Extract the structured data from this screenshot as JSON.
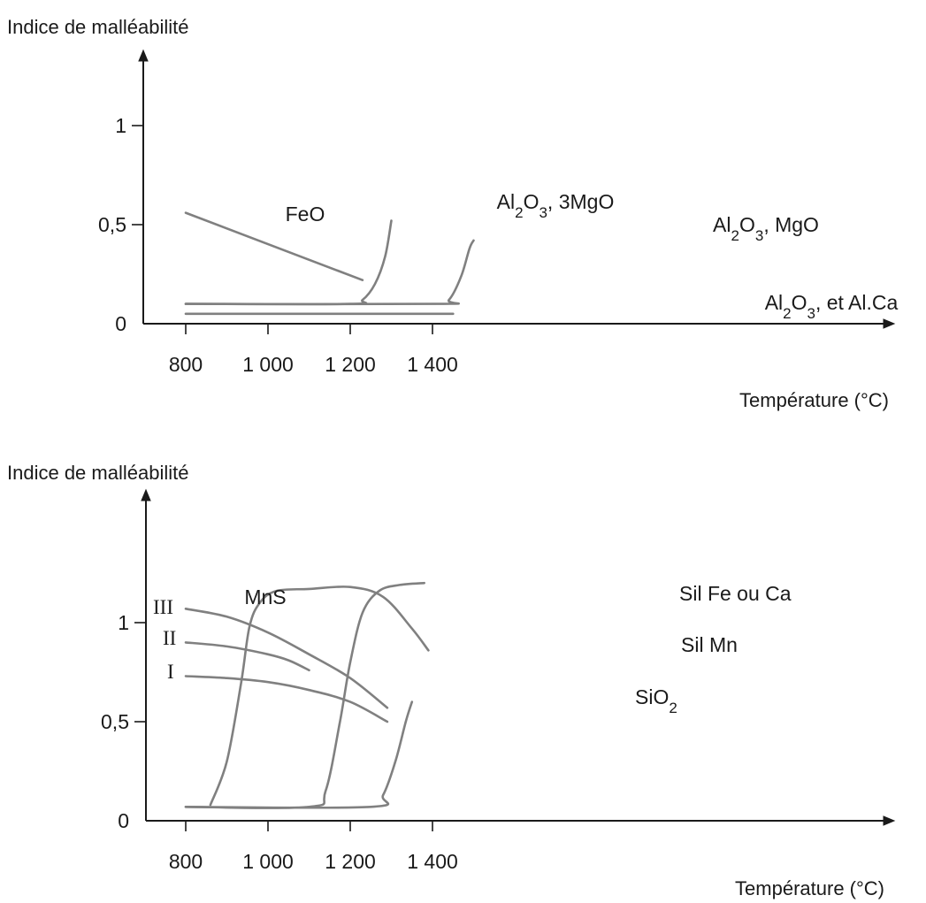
{
  "chart_data": [
    {
      "type": "line",
      "ylabel": "Indice de malléabilité",
      "xlabel": "Température (°C)",
      "xlim": [
        800,
        1600
      ],
      "ylim": [
        0,
        1.5
      ],
      "x_ticks": [
        800,
        1000,
        1200,
        1400
      ],
      "x_tick_labels": [
        "800",
        "1 000",
        "1 200",
        "1 400"
      ],
      "y_ticks": [
        0,
        0.5,
        1
      ],
      "y_tick_labels": [
        "0",
        "0,5",
        "1"
      ],
      "grid": false,
      "series": [
        {
          "name": "FeO",
          "label_parts": [
            {
              "t": "FeO"
            }
          ],
          "x": [
            800,
            1230
          ],
          "y": [
            0.56,
            0.22
          ]
        },
        {
          "name": "Al2O3, 3MgO",
          "label_parts": [
            {
              "t": "Al"
            },
            {
              "t": "2",
              "sub": true
            },
            {
              "t": "O"
            },
            {
              "t": "3",
              "sub": true
            },
            {
              "t": ", 3MgO"
            }
          ],
          "x": [
            800,
            1200,
            1230,
            1260,
            1285,
            1300
          ],
          "y": [
            0.1,
            0.1,
            0.12,
            0.2,
            0.34,
            0.52
          ]
        },
        {
          "name": "Al2O3, MgO",
          "label_parts": [
            {
              "t": "Al"
            },
            {
              "t": "2",
              "sub": true
            },
            {
              "t": "O"
            },
            {
              "t": "3",
              "sub": true
            },
            {
              "t": ", MgO"
            }
          ],
          "x": [
            800,
            1410,
            1440,
            1470,
            1490,
            1500
          ],
          "y": [
            0.1,
            0.1,
            0.12,
            0.24,
            0.38,
            0.42
          ]
        },
        {
          "name": "Al2O3, et Al.Ca",
          "label_parts": [
            {
              "t": "Al"
            },
            {
              "t": "2",
              "sub": true
            },
            {
              "t": "O"
            },
            {
              "t": "3",
              "sub": true
            },
            {
              "t": ", et Al.Ca"
            }
          ],
          "x": [
            800,
            1450
          ],
          "y": [
            0.05,
            0.05
          ]
        }
      ]
    },
    {
      "type": "line",
      "ylabel": "Indice de malléabilité",
      "xlabel": "Température (°C)",
      "xlim": [
        800,
        1600
      ],
      "ylim": [
        0,
        1.5
      ],
      "x_ticks": [
        800,
        1000,
        1200,
        1400
      ],
      "x_tick_labels": [
        "800",
        "1 000",
        "1 200",
        "1 400"
      ],
      "y_ticks": [
        0,
        0.5,
        1
      ],
      "y_tick_labels": [
        "0",
        "0,5",
        "1"
      ],
      "grid": false,
      "annotations": [
        {
          "text": "MnS"
        }
      ],
      "series": [
        {
          "name": "III",
          "roman": true,
          "x": [
            800,
            900,
            1000,
            1100,
            1200,
            1290
          ],
          "y": [
            1.07,
            1.03,
            0.95,
            0.84,
            0.72,
            0.57
          ]
        },
        {
          "name": "II",
          "roman": true,
          "x": [
            800,
            900,
            1000,
            1050,
            1100
          ],
          "y": [
            0.9,
            0.88,
            0.84,
            0.81,
            0.76
          ]
        },
        {
          "name": "I",
          "roman": true,
          "x": [
            800,
            900,
            1000,
            1100,
            1200,
            1290
          ],
          "y": [
            0.73,
            0.72,
            0.7,
            0.66,
            0.6,
            0.5
          ]
        },
        {
          "name": "Sil Mn",
          "label_parts": [
            {
              "t": "Sil Mn"
            }
          ],
          "x": [
            860,
            900,
            935,
            955,
            980,
            1020,
            1100,
            1200,
            1280,
            1350,
            1390
          ],
          "y": [
            0.08,
            0.3,
            0.7,
            0.98,
            1.1,
            1.16,
            1.17,
            1.18,
            1.13,
            0.97,
            0.86
          ]
        },
        {
          "name": "Sil Fe ou Ca",
          "label_parts": [
            {
              "t": "Sil Fe ou Ca"
            }
          ],
          "x": [
            800,
            1100,
            1140,
            1175,
            1200,
            1230,
            1270,
            1320,
            1380
          ],
          "y": [
            0.07,
            0.07,
            0.15,
            0.5,
            0.8,
            1.05,
            1.16,
            1.19,
            1.2
          ]
        },
        {
          "name": "SiO2",
          "label_parts": [
            {
              "t": "SiO"
            },
            {
              "t": "2",
              "sub": true
            }
          ],
          "x": [
            800,
            1250,
            1280,
            1310,
            1335,
            1350
          ],
          "y": [
            0.07,
            0.07,
            0.13,
            0.3,
            0.5,
            0.6
          ]
        }
      ]
    }
  ]
}
